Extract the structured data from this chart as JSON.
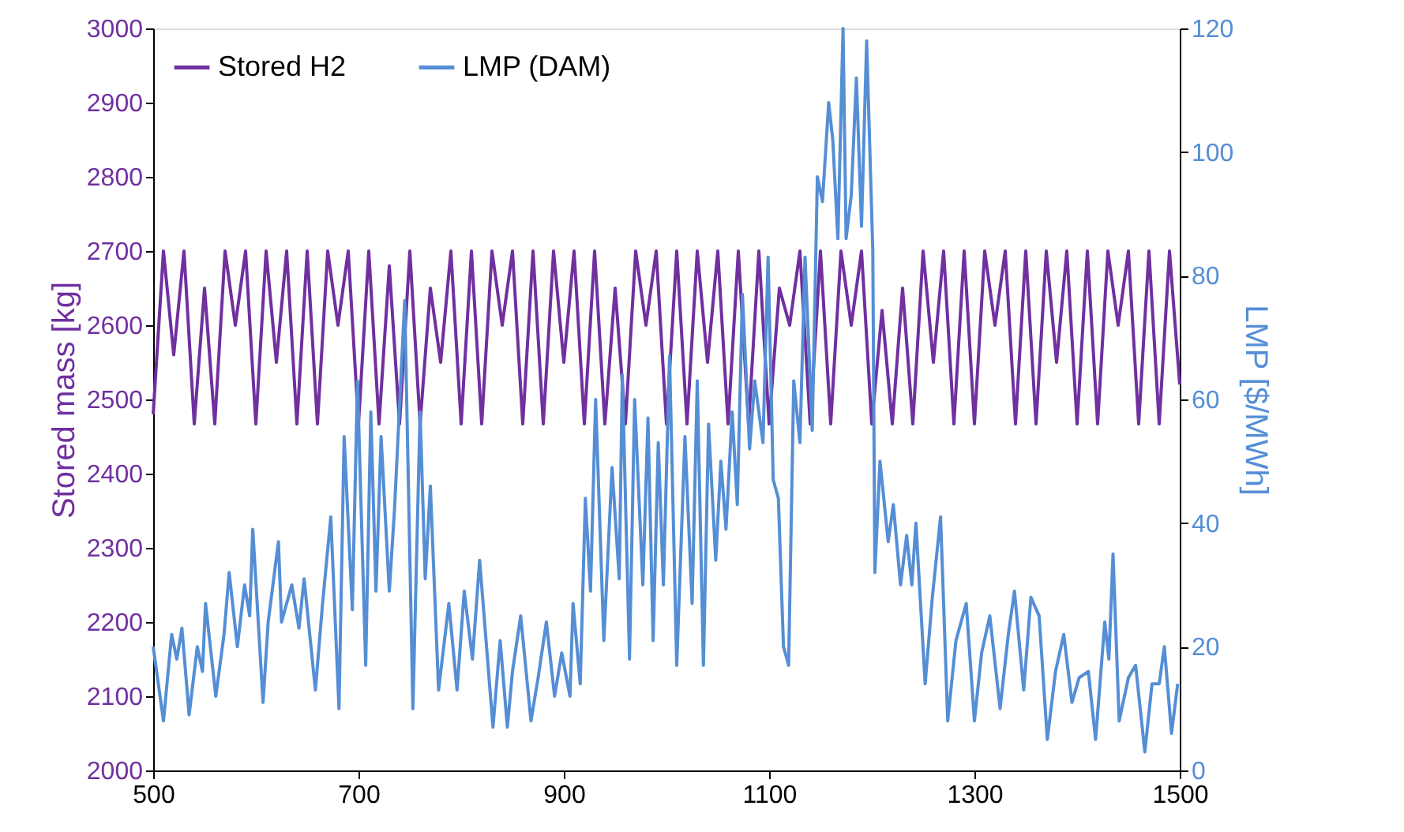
{
  "chart_data": {
    "type": "line",
    "ylabel": "Stored mass [kg]",
    "y2label": "LMP [$/MWh]",
    "xlim": [
      500,
      1500
    ],
    "xticks": [
      500,
      700,
      900,
      1100,
      1300,
      1500
    ],
    "ylim": [
      2000,
      3000
    ],
    "yticks": [
      2000,
      2100,
      2200,
      2300,
      2400,
      2500,
      2600,
      2700,
      2800,
      2900,
      3000
    ],
    "y2lim": [
      0,
      120
    ],
    "y2ticks": [
      0,
      20,
      40,
      60,
      80,
      100,
      120
    ],
    "legend": "top left",
    "grid": false,
    "series": [
      {
        "name": "Stored H2",
        "color": "#7030a0",
        "x": [
          500,
          510,
          520,
          530,
          540,
          550,
          560,
          570,
          580,
          590,
          600,
          610,
          620,
          630,
          640,
          650,
          660,
          670,
          680,
          690,
          700,
          710,
          720,
          730,
          740,
          750,
          760,
          770,
          780,
          790,
          800,
          810,
          820,
          830,
          840,
          850,
          860,
          870,
          880,
          890,
          900,
          910,
          920,
          930,
          940,
          950,
          960,
          970,
          980,
          990,
          1000,
          1010,
          1020,
          1030,
          1040,
          1050,
          1060,
          1070,
          1080,
          1090,
          1100,
          1110,
          1120,
          1130,
          1140,
          1150,
          1160,
          1170,
          1180,
          1190,
          1200,
          1210,
          1220,
          1230,
          1240,
          1250,
          1260,
          1270,
          1280,
          1290,
          1300,
          1310,
          1320,
          1330,
          1340,
          1350,
          1360,
          1370,
          1380,
          1390,
          1400,
          1410,
          1420,
          1430,
          1440,
          1450,
          1460,
          1470,
          1480,
          1490,
          1500
        ],
        "values": [
          2480,
          2700,
          2560,
          2700,
          2467,
          2650,
          2467,
          2700,
          2600,
          2700,
          2467,
          2700,
          2550,
          2700,
          2467,
          2700,
          2467,
          2700,
          2600,
          2700,
          2467,
          2700,
          2467,
          2680,
          2467,
          2700,
          2467,
          2650,
          2550,
          2700,
          2467,
          2700,
          2467,
          2700,
          2600,
          2700,
          2467,
          2700,
          2467,
          2700,
          2550,
          2700,
          2467,
          2700,
          2467,
          2650,
          2467,
          2700,
          2600,
          2700,
          2467,
          2700,
          2467,
          2700,
          2550,
          2700,
          2467,
          2700,
          2467,
          2700,
          2467,
          2650,
          2600,
          2700,
          2467,
          2700,
          2467,
          2700,
          2600,
          2700,
          2467,
          2620,
          2467,
          2650,
          2467,
          2700,
          2550,
          2700,
          2467,
          2700,
          2467,
          2700,
          2600,
          2700,
          2467,
          2700,
          2467,
          2700,
          2550,
          2700,
          2467,
          2700,
          2467,
          2700,
          2600,
          2700,
          2467,
          2700,
          2467,
          2700,
          2520
        ]
      },
      {
        "name": "LMP (DAM)",
        "color": "#558ed5",
        "axis": "y2",
        "x": [
          500,
          510,
          518,
          523,
          528,
          535,
          543,
          548,
          551,
          561,
          569,
          574,
          582,
          589,
          594,
          597,
          607,
          612,
          622,
          625,
          635,
          642,
          647,
          658,
          665,
          673,
          681,
          686,
          694,
          699,
          707,
          712,
          717,
          722,
          730,
          735,
          745,
          753,
          760,
          765,
          770,
          778,
          788,
          796,
          803,
          811,
          818,
          831,
          838,
          845,
          850,
          858,
          868,
          875,
          883,
          891,
          898,
          906,
          909,
          916,
          921,
          926,
          931,
          939,
          947,
          954,
          957,
          964,
          969,
          977,
          982,
          987,
          992,
          997,
          1003,
          1010,
          1018,
          1025,
          1030,
          1036,
          1041,
          1048,
          1053,
          1058,
          1064,
          1069,
          1074,
          1081,
          1086,
          1094,
          1099,
          1104,
          1109,
          1114,
          1119,
          1124,
          1130,
          1135,
          1142,
          1147,
          1152,
          1158,
          1162,
          1167,
          1172,
          1175,
          1180,
          1185,
          1190,
          1195,
          1201,
          1203,
          1208,
          1216,
          1221,
          1228,
          1234,
          1239,
          1243,
          1252,
          1259,
          1267,
          1274,
          1282,
          1292,
          1300,
          1307,
          1315,
          1325,
          1333,
          1339,
          1348,
          1355,
          1363,
          1371,
          1379,
          1387,
          1395,
          1402,
          1411,
          1418,
          1427,
          1431,
          1435,
          1441,
          1450,
          1457,
          1466,
          1473,
          1480,
          1485,
          1492,
          1498
        ],
        "values": [
          20,
          8,
          22,
          18,
          23,
          9,
          20,
          16,
          27,
          12,
          22,
          32,
          20,
          30,
          25,
          39,
          11,
          24,
          37,
          24,
          30,
          23,
          31,
          13,
          27,
          41,
          10,
          54,
          26,
          63,
          17,
          58,
          29,
          54,
          29,
          42,
          76,
          10,
          58,
          31,
          46,
          13,
          27,
          13,
          29,
          18,
          34,
          7,
          21,
          7,
          16,
          25,
          8,
          15,
          24,
          12,
          19,
          12,
          27,
          14,
          44,
          29,
          60,
          21,
          49,
          31,
          64,
          18,
          60,
          30,
          57,
          21,
          53,
          30,
          67,
          17,
          54,
          27,
          63,
          17,
          56,
          34,
          50,
          39,
          58,
          43,
          77,
          52,
          63,
          53,
          83,
          47,
          44,
          20,
          17,
          63,
          53,
          83,
          55,
          96,
          92,
          108,
          102,
          86,
          120,
          86,
          93,
          112,
          88,
          118,
          84,
          32,
          50,
          37,
          43,
          30,
          38,
          30,
          40,
          14,
          28,
          41,
          8,
          21,
          27,
          8,
          19,
          25,
          10,
          22,
          29,
          13,
          28,
          25,
          5,
          16,
          22,
          11,
          15,
          16,
          5,
          24,
          18,
          35,
          8,
          15,
          17,
          3,
          14,
          14,
          20,
          6,
          14
        ]
      }
    ]
  }
}
